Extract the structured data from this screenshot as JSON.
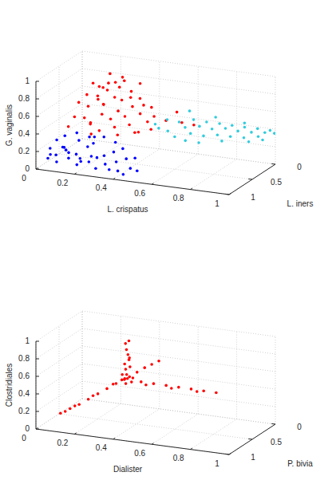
{
  "chart_data": [
    {
      "type": "scatter",
      "xlabel": "L. crispatus",
      "ylabel": "L. iners",
      "zlabel": "G. vaginalis",
      "xlim": [
        0,
        1
      ],
      "ylim": [
        0,
        1
      ],
      "zlim": [
        0,
        1
      ],
      "xticks": [
        0,
        0.2,
        0.4,
        0.6,
        0.8,
        1
      ],
      "yticks": [
        0,
        0.5,
        1
      ],
      "zticks": [
        0,
        0.2,
        0.4,
        0.6,
        0.8,
        1
      ],
      "grid": true,
      "series": [
        {
          "color": "#0000ff",
          "x": [
            0.05,
            0.08,
            0.1,
            0.12,
            0.15,
            0.18,
            0.2,
            0.22,
            0.25,
            0.28,
            0.3,
            0.33,
            0.36,
            0.4,
            0.44,
            0.06,
            0.09,
            0.14,
            0.17,
            0.21,
            0.11,
            0.16,
            0.24,
            0.27,
            0.31,
            0.35,
            0.38,
            0.42,
            0.46,
            0.5,
            0.07,
            0.13,
            0.19,
            0.23,
            0.29,
            0.34,
            0.04,
            0.26,
            0.39,
            0.47
          ],
          "y": [
            0.95,
            0.9,
            0.97,
            0.85,
            0.92,
            0.88,
            0.95,
            0.8,
            0.9,
            0.85,
            0.96,
            0.88,
            0.92,
            0.9,
            0.95,
            0.8,
            0.75,
            0.7,
            0.78,
            0.72,
            0.88,
            0.96,
            0.76,
            0.93,
            0.82,
            0.78,
            0.85,
            0.8,
            0.88,
            0.9,
            0.98,
            0.93,
            0.84,
            0.99,
            0.74,
            0.7,
            0.86,
            0.82,
            0.75,
            0.82
          ],
          "z": [
            0.12,
            0.15,
            0.1,
            0.2,
            0.14,
            0.18,
            0.09,
            0.25,
            0.12,
            0.16,
            0.08,
            0.11,
            0.07,
            0.06,
            0.05,
            0.28,
            0.32,
            0.35,
            0.3,
            0.33,
            0.24,
            0.22,
            0.28,
            0.2,
            0.18,
            0.22,
            0.14,
            0.17,
            0.1,
            0.09,
            0.18,
            0.26,
            0.12,
            0.15,
            0.36,
            0.3,
            0.2,
            0.38,
            0.26,
            0.2
          ]
        },
        {
          "color": "#ff0000",
          "x": [
            0.2,
            0.22,
            0.25,
            0.18,
            0.28,
            0.24,
            0.3,
            0.15,
            0.2,
            0.26,
            0.32,
            0.35,
            0.22,
            0.17,
            0.27,
            0.33,
            0.38,
            0.4,
            0.29,
            0.19,
            0.14,
            0.23,
            0.31,
            0.36,
            0.42,
            0.45,
            0.16,
            0.21,
            0.28,
            0.34,
            0.4,
            0.47,
            0.12,
            0.25,
            0.37,
            0.44,
            0.5,
            0.3,
            0.26,
            0.21,
            0.33,
            0.39,
            0.48,
            0.53,
            0.6,
            0.55,
            0.65,
            0.18,
            0.36,
            0.43
          ],
          "y": [
            0.6,
            0.55,
            0.5,
            0.65,
            0.45,
            0.4,
            0.55,
            0.7,
            0.5,
            0.62,
            0.48,
            0.4,
            0.35,
            0.58,
            0.7,
            0.6,
            0.5,
            0.42,
            0.3,
            0.45,
            0.75,
            0.78,
            0.68,
            0.58,
            0.5,
            0.38,
            0.62,
            0.7,
            0.8,
            0.72,
            0.65,
            0.55,
            0.8,
            0.85,
            0.78,
            0.7,
            0.6,
            0.38,
            0.28,
            0.42,
            0.33,
            0.3,
            0.45,
            0.4,
            0.35,
            0.25,
            0.3,
            0.3,
            0.25,
            0.58
          ],
          "z": [
            0.9,
            0.85,
            0.8,
            0.78,
            0.88,
            0.95,
            0.75,
            0.7,
            0.72,
            0.68,
            0.7,
            0.78,
            0.82,
            0.62,
            0.6,
            0.62,
            0.65,
            0.72,
            0.85,
            0.66,
            0.55,
            0.52,
            0.55,
            0.56,
            0.58,
            0.62,
            0.5,
            0.47,
            0.45,
            0.48,
            0.5,
            0.52,
            0.45,
            0.42,
            0.42,
            0.44,
            0.46,
            0.92,
            0.76,
            0.6,
            0.68,
            0.6,
            0.55,
            0.5,
            0.48,
            0.55,
            0.45,
            0.74,
            0.82,
            0.4
          ]
        },
        {
          "color": "#33ccdd",
          "x": [
            0.45,
            0.48,
            0.5,
            0.52,
            0.55,
            0.57,
            0.6,
            0.62,
            0.64,
            0.66,
            0.68,
            0.7,
            0.72,
            0.74,
            0.76,
            0.78,
            0.8,
            0.82,
            0.84,
            0.86,
            0.88,
            0.9,
            0.92,
            0.94,
            0.96,
            0.98,
            1,
            0.58,
            0.63,
            0.71,
            0.79,
            0.85,
            0.91,
            0.97,
            0.69
          ],
          "y": [
            0.3,
            0.35,
            0.25,
            0.32,
            0.2,
            0.38,
            0.28,
            0.18,
            0.33,
            0.22,
            0.15,
            0.3,
            0.2,
            0.12,
            0.25,
            0.16,
            0.1,
            0.22,
            0.14,
            0.08,
            0.18,
            0.1,
            0.05,
            0.12,
            0.06,
            0.03,
            0.02,
            0.1,
            0.4,
            0.08,
            0.28,
            0.04,
            0.2,
            0.15,
            0.36
          ],
          "z": [
            0.4,
            0.38,
            0.45,
            0.35,
            0.42,
            0.32,
            0.4,
            0.46,
            0.36,
            0.41,
            0.44,
            0.34,
            0.39,
            0.43,
            0.35,
            0.4,
            0.42,
            0.34,
            0.38,
            0.41,
            0.33,
            0.37,
            0.4,
            0.34,
            0.37,
            0.39,
            0.36,
            0.52,
            0.3,
            0.48,
            0.3,
            0.44,
            0.3,
            0.32,
            0.28
          ]
        }
      ]
    },
    {
      "type": "scatter",
      "xlabel": "Dialister",
      "ylabel": "P. bivia",
      "zlabel": "Clostridiales",
      "xlim": [
        0,
        1
      ],
      "ylim": [
        0,
        1
      ],
      "zlim": [
        0,
        1
      ],
      "xticks": [
        0,
        0.2,
        0.4,
        0.6,
        0.8,
        1
      ],
      "yticks": [
        0,
        0.5,
        1
      ],
      "zticks": [
        0,
        0.2,
        0.4,
        0.6,
        0.8,
        1
      ],
      "grid": true,
      "series": [
        {
          "color": "#ff0000",
          "x": [
            0.34,
            0.36,
            0.33,
            0.35,
            0.37,
            0.32,
            0.38,
            0.35,
            0.34,
            0.36,
            0.34,
            0.33,
            0.35,
            0.34,
            0.33,
            0.32,
            0.36,
            0.35,
            0.34,
            0.3,
            0.26,
            0.22,
            0.18,
            0.14,
            0.1,
            0.06,
            0.28,
            0.2,
            0.12,
            0.08,
            0.42,
            0.48,
            0.54,
            0.6,
            0.66,
            0.72,
            0.78,
            0.45,
            0.57,
            0.69,
            0.38,
            0.4,
            0.42,
            0.44
          ],
          "y": [
            0.5,
            0.48,
            0.52,
            0.55,
            0.45,
            0.47,
            0.52,
            0.5,
            0.44,
            0.56,
            0.48,
            0.46,
            0.45,
            0.43,
            0.42,
            0.4,
            0.47,
            0.44,
            0.41,
            0.52,
            0.55,
            0.58,
            0.62,
            0.65,
            0.68,
            0.72,
            0.5,
            0.6,
            0.66,
            0.7,
            0.48,
            0.46,
            0.44,
            0.42,
            0.4,
            0.38,
            0.36,
            0.5,
            0.45,
            0.4,
            0.4,
            0.32,
            0.25,
            0.18
          ],
          "z": [
            0.5,
            0.52,
            0.49,
            0.51,
            0.5,
            0.53,
            0.48,
            0.55,
            0.48,
            0.47,
            0.6,
            0.65,
            0.7,
            0.75,
            0.8,
            0.86,
            0.63,
            0.72,
            0.9,
            0.44,
            0.38,
            0.32,
            0.26,
            0.2,
            0.15,
            0.1,
            0.42,
            0.3,
            0.18,
            0.12,
            0.48,
            0.47,
            0.46,
            0.45,
            0.44,
            0.43,
            0.42,
            0.46,
            0.44,
            0.42,
            0.55,
            0.58,
            0.6,
            0.62
          ]
        }
      ]
    }
  ]
}
